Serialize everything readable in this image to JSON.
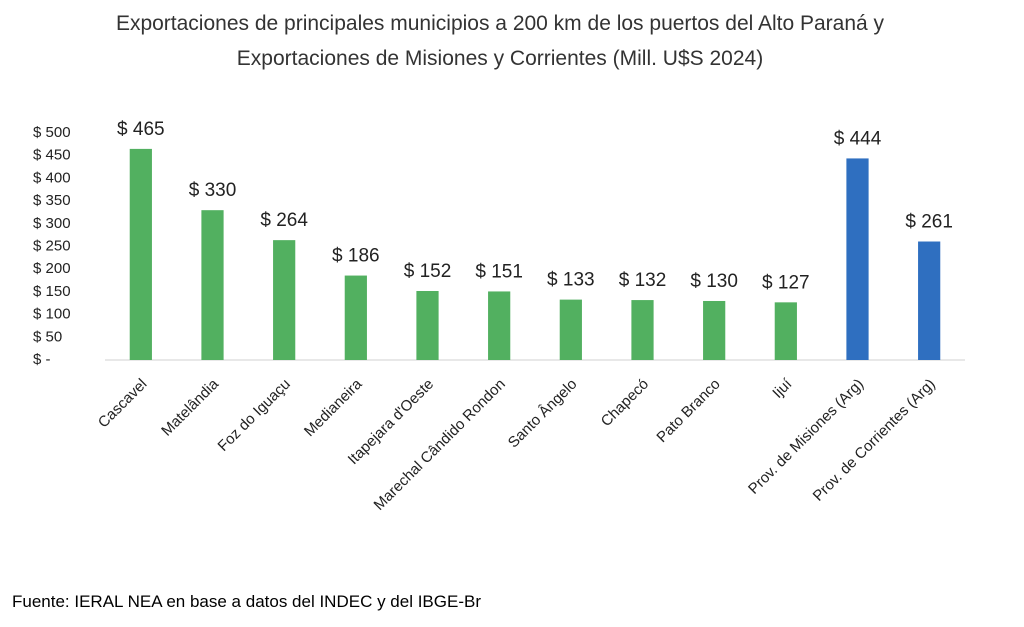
{
  "chart_data": {
    "type": "bar",
    "title": "Exportaciones de principales municipios a 200 km de los puertos del Alto Paraná y Exportaciones de Misiones y Corrientes (Mill. U$S 2024)",
    "categories": [
      "Cascavel",
      "Matelândia",
      "Foz do Iguaçu",
      "Medianeira",
      "Itapejara d'Oeste",
      "Marechal Cândido Rondon",
      "Santo Ângelo",
      "Chapecó",
      "Pato Branco",
      "Ijuí",
      "Prov. de Misiones (Arg)",
      "Prov. de Corrientes (Arg)"
    ],
    "values": [
      465,
      330,
      264,
      186,
      152,
      151,
      133,
      132,
      130,
      127,
      444,
      261
    ],
    "value_labels": [
      "$ 465",
      "$ 330",
      "$ 264",
      "$ 186",
      "$ 152",
      "$ 151",
      "$ 133",
      "$ 132",
      "$ 130",
      "$ 127",
      "$ 444",
      "$ 261"
    ],
    "colors": [
      "#52b060",
      "#52b060",
      "#52b060",
      "#52b060",
      "#52b060",
      "#52b060",
      "#52b060",
      "#52b060",
      "#52b060",
      "#52b060",
      "#2f6fc0",
      "#2f6fc0"
    ],
    "ylim": [
      0,
      500
    ],
    "yticks": [
      {
        "value": 0,
        "label": "$ -"
      },
      {
        "value": 50,
        "label": "$ 50"
      },
      {
        "value": 100,
        "label": "$ 100"
      },
      {
        "value": 150,
        "label": "$ 150"
      },
      {
        "value": 200,
        "label": "$ 200"
      },
      {
        "value": 250,
        "label": "$ 250"
      },
      {
        "value": 300,
        "label": "$ 300"
      },
      {
        "value": 350,
        "label": "$ 350"
      },
      {
        "value": 400,
        "label": "$ 400"
      },
      {
        "value": 450,
        "label": "$ 450"
      },
      {
        "value": 500,
        "label": "$ 500"
      }
    ],
    "grid": false,
    "source": "Fuente: IERAL NEA en base a datos del INDEC y del IBGE-Br"
  }
}
